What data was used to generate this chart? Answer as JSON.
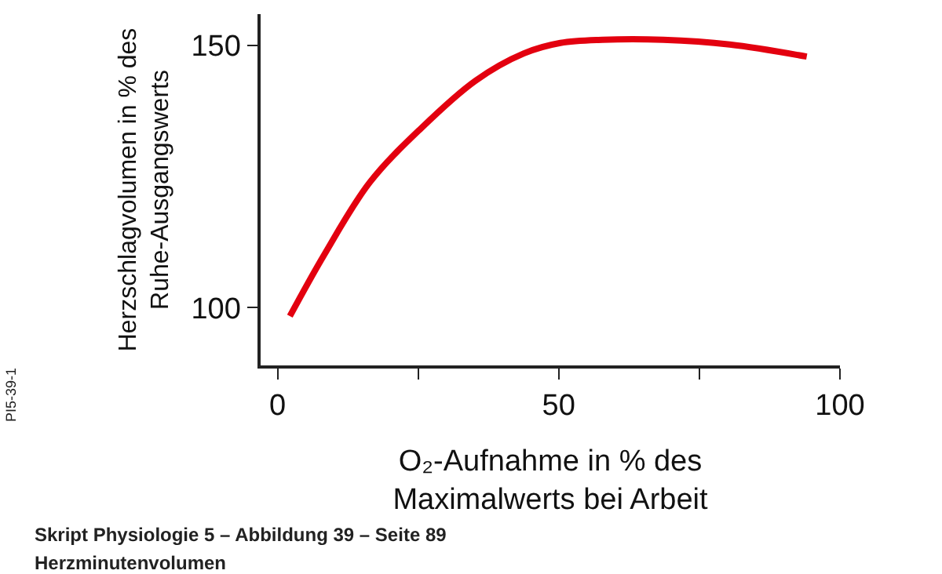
{
  "chart_data": {
    "type": "line",
    "xlabel": "O₂-Aufnahme in % des\nMaximalwerts bei Arbeit",
    "ylabel": "Herzschlagvolumen in % des\nRuhe-Ausgangswerts",
    "x": [
      2.2,
      8.3,
      16.4,
      25.5,
      35.2,
      43.8,
      50.3,
      57.8,
      68.6,
      80.4,
      94.1
    ],
    "series": [
      {
        "color": "#e3000f",
        "values": [
          98.4,
          110.1,
          123.9,
          134.2,
          143.3,
          148.5,
          150.5,
          151.1,
          151.1,
          150.2,
          147.9
        ]
      }
    ],
    "xlim": [
      -3,
      100
    ],
    "xticks": [
      0,
      {
        "value": 25,
        "label": null
      },
      50,
      {
        "value": 75,
        "label": null
      },
      100
    ],
    "ylim": [
      89,
      156
    ],
    "yticks": [
      100,
      150
    ],
    "marker": "none",
    "line_style": "solid",
    "annotations": [
      "PI5-39-1",
      "Skript Physiologie 5 – Abbildung 39 – Seite 89",
      "Herzminutenvolumen"
    ]
  }
}
